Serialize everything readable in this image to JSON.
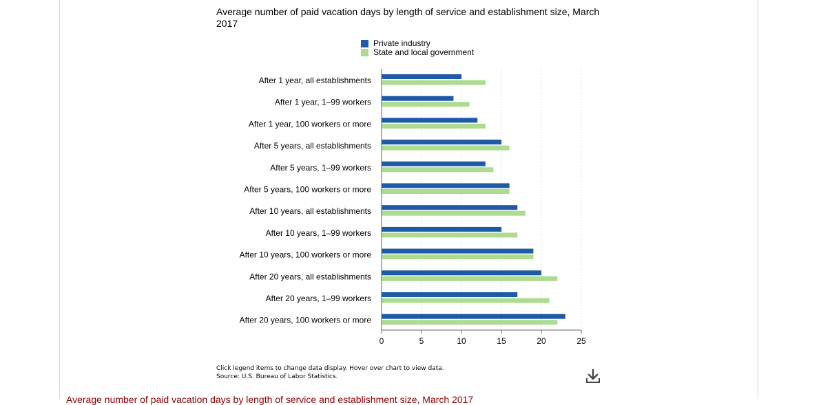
{
  "chart_data": {
    "type": "bar",
    "orientation": "horizontal",
    "title": "Average number of paid vacation days by length of service and establishment size, March 2017",
    "categories": [
      "After 1 year, all establishments",
      "After 1 year, 1–99 workers",
      "After 1 year, 100 workers or more",
      "After 5 years, all establishments",
      "After 5 years, 1–99 workers",
      "After 5 years, 100 workers or more",
      "After 10 years, all establishments",
      "After 10 years, 1–99 workers",
      "After 10 years, 100 workers or more",
      "After 20 years, all establishments",
      "After 20 years, 1–99 workers",
      "After 20 years, 100 workers or more"
    ],
    "series": [
      {
        "name": "Private industry",
        "color": "#1f5aa6",
        "values": [
          10,
          9,
          12,
          15,
          13,
          16,
          17,
          15,
          19,
          20,
          17,
          23
        ]
      },
      {
        "name": "State and local government",
        "color": "#addc91",
        "values": [
          13,
          11,
          13,
          16,
          14,
          16,
          18,
          17,
          19,
          22,
          21,
          22
        ]
      }
    ],
    "xlim": [
      0,
      25
    ],
    "xticks": [
      0,
      5,
      10,
      15,
      20,
      25
    ],
    "xlabel": "",
    "ylabel": "",
    "grid": "vertical dotted",
    "legend_position": "top"
  },
  "footer": {
    "note": "Click legend items to change data display. Hover over chart to view data.",
    "source": "Source: U.S. Bureau of Labor Statistics."
  },
  "download": {
    "icon": "download-icon"
  },
  "bottom_heading": "Average number of paid vacation days by length of service and establishment size, March 2017"
}
